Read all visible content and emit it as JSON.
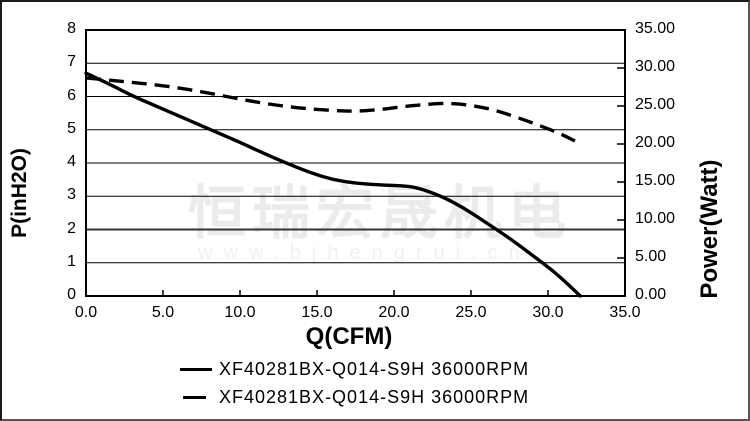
{
  "watermark": {
    "line1": "恒瑞宏晟机电",
    "line2": "www.bjhengrui.cn"
  },
  "chart_data": {
    "type": "line",
    "title": "",
    "xlabel": "Q(CFM)",
    "ylabel_left": "P(inH2O)",
    "ylabel_right": "Power(Watt)",
    "xlim": [
      0,
      35
    ],
    "ylim_left": [
      0,
      8
    ],
    "ylim_right": [
      0,
      35
    ],
    "grid": "horizontal",
    "line_color": "#000000",
    "x_ticks": [
      {
        "v": 0,
        "label": "0.0"
      },
      {
        "v": 5,
        "label": "5.0"
      },
      {
        "v": 10,
        "label": "10.0"
      },
      {
        "v": 15,
        "label": "15.0"
      },
      {
        "v": 20,
        "label": "20.0"
      },
      {
        "v": 25,
        "label": "25.0"
      },
      {
        "v": 30,
        "label": "30.0"
      },
      {
        "v": 35,
        "label": "35.0"
      }
    ],
    "y_left_ticks": [
      {
        "v": 0,
        "label": "0"
      },
      {
        "v": 1,
        "label": "1"
      },
      {
        "v": 2,
        "label": "2"
      },
      {
        "v": 3,
        "label": "3"
      },
      {
        "v": 4,
        "label": "4"
      },
      {
        "v": 5,
        "label": "5"
      },
      {
        "v": 6,
        "label": "6"
      },
      {
        "v": 7,
        "label": "7"
      },
      {
        "v": 8,
        "label": "8"
      }
    ],
    "y_right_ticks": [
      {
        "v": 0,
        "label": "0.00"
      },
      {
        "v": 5,
        "label": "5.00"
      },
      {
        "v": 10,
        "label": "10.00"
      },
      {
        "v": 15,
        "label": "15.00"
      },
      {
        "v": 20,
        "label": "20.00"
      },
      {
        "v": 25,
        "label": "25.00"
      },
      {
        "v": 30,
        "label": "30.00"
      },
      {
        "v": 35,
        "label": "35.00"
      }
    ],
    "series": [
      {
        "name": "XF40281BX-Q014-S9H 36000RPM",
        "axis": "left",
        "style": "solid",
        "points": [
          [
            0,
            6.7
          ],
          [
            1.5,
            6.38
          ],
          [
            3,
            6.02
          ],
          [
            5,
            5.62
          ],
          [
            6.5,
            5.32
          ],
          [
            8,
            5.02
          ],
          [
            10,
            4.62
          ],
          [
            11.5,
            4.3
          ],
          [
            13,
            4.0
          ],
          [
            14.5,
            3.72
          ],
          [
            16,
            3.5
          ],
          [
            17.5,
            3.39
          ],
          [
            19,
            3.34
          ],
          [
            20.5,
            3.32
          ],
          [
            21.5,
            3.26
          ],
          [
            23,
            3.02
          ],
          [
            24.5,
            2.66
          ],
          [
            26,
            2.2
          ],
          [
            27.5,
            1.74
          ],
          [
            29,
            1.22
          ],
          [
            30.5,
            0.7
          ],
          [
            32.1,
            0
          ]
        ]
      },
      {
        "name": "XF40281BX-Q014-S9H 36000RPM",
        "axis": "right",
        "style": "dashed",
        "points": [
          [
            0,
            28.7
          ],
          [
            2,
            28.3
          ],
          [
            4,
            27.9
          ],
          [
            6,
            27.4
          ],
          [
            8,
            26.7
          ],
          [
            10,
            25.9
          ],
          [
            12,
            25.2
          ],
          [
            14,
            24.7
          ],
          [
            16,
            24.4
          ],
          [
            17.5,
            24.3
          ],
          [
            19,
            24.5
          ],
          [
            20.5,
            24.9
          ],
          [
            22,
            25.2
          ],
          [
            23.5,
            25.4
          ],
          [
            25,
            25.1
          ],
          [
            26.5,
            24.5
          ],
          [
            28,
            23.5
          ],
          [
            29.5,
            22.4
          ],
          [
            31,
            21.2
          ],
          [
            32.2,
            19.9
          ]
        ]
      }
    ],
    "legend": [
      {
        "style": "solid",
        "label": "XF40281BX-Q014-S9H 36000RPM"
      },
      {
        "style": "dashed",
        "label": "XF40281BX-Q014-S9H 36000RPM"
      }
    ]
  }
}
